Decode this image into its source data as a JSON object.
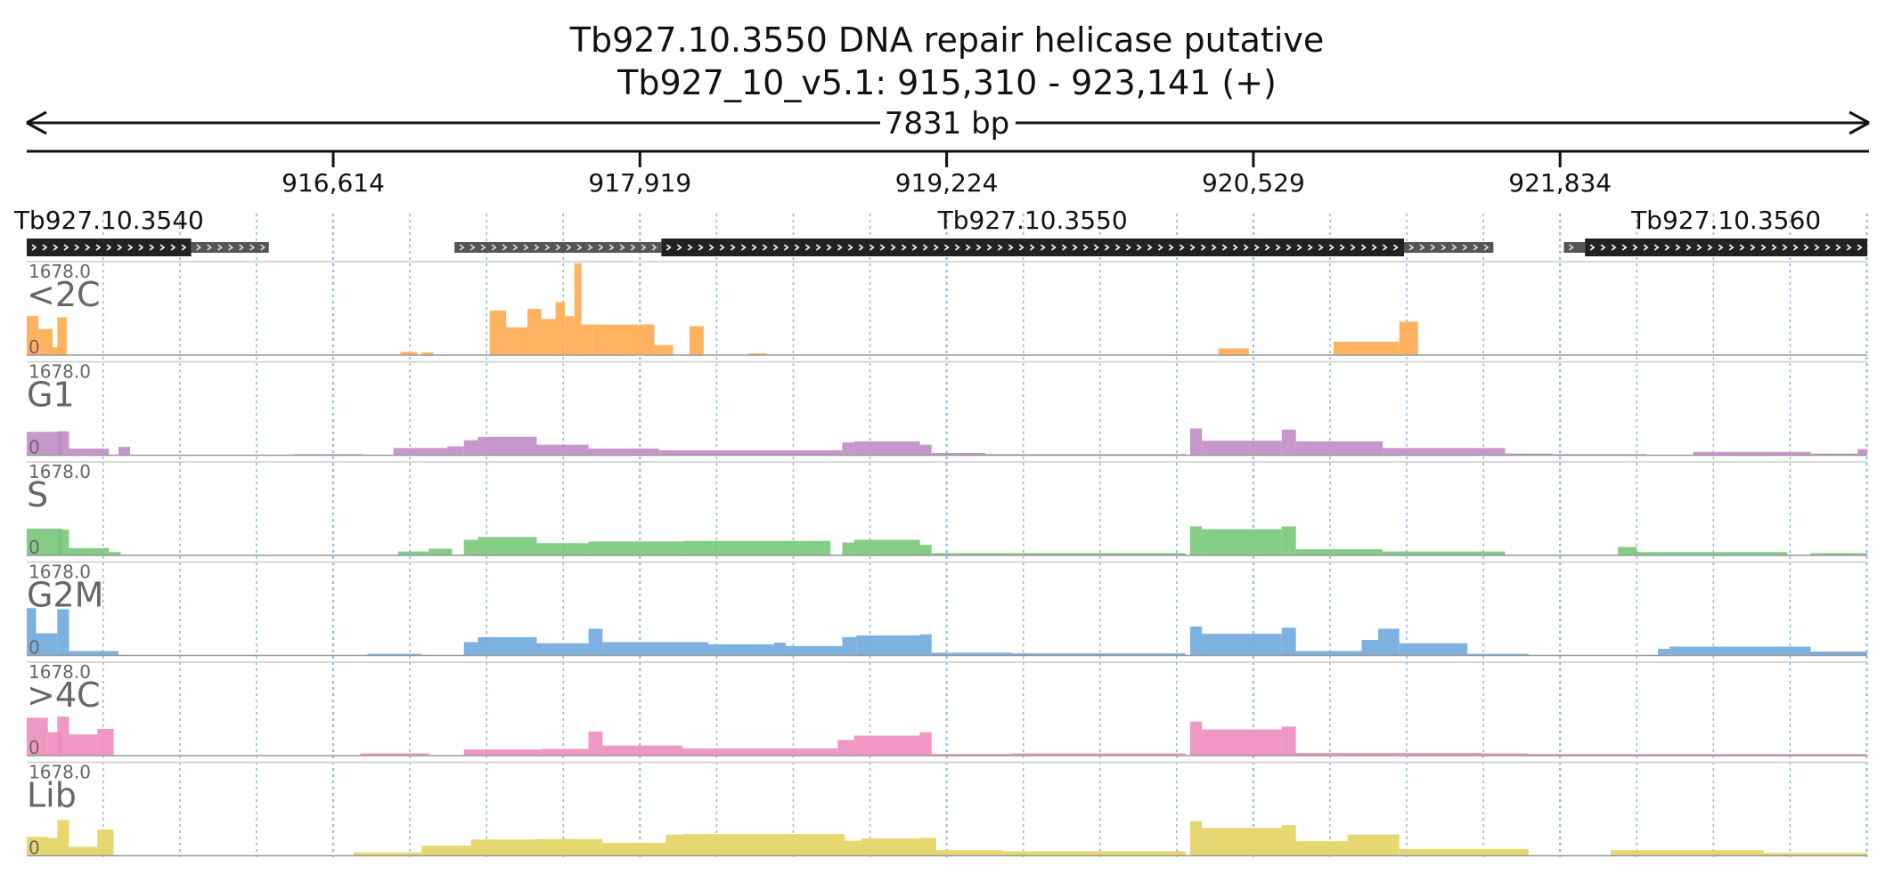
{
  "title": {
    "line1": "Tb927.10.3550  DNA repair helicase  putative",
    "line2": "Tb927_10_v5.1: 915,310 - 923,141 (+)"
  },
  "span_label": "7831 bp",
  "colors": {
    "text": "#000000",
    "track_label": "#666666",
    "grid": "#8fbde3",
    "gene_box": "#222222",
    "utr_box": "#555555"
  },
  "chart_data": {
    "type": "area",
    "title": "Tb927.10.3550  DNA repair helicase  putative",
    "region": {
      "chrom": "Tb927_10_v5.1",
      "start": 915310,
      "end": 923141,
      "strand": "+"
    },
    "xlim": [
      915310,
      923141
    ],
    "grid": true,
    "ticks": [
      {
        "pos": 916614,
        "label": "916,614"
      },
      {
        "pos": 917919,
        "label": "917,919"
      },
      {
        "pos": 919224,
        "label": "919,224"
      },
      {
        "pos": 920529,
        "label": "920,529"
      },
      {
        "pos": 921834,
        "label": "921,834"
      }
    ],
    "genes": [
      {
        "name": "Tb927.10.3540",
        "cds": [
          915310,
          916010
        ],
        "utr": [
          916010,
          916340
        ]
      },
      {
        "name": "Tb927.10.3550",
        "utr5": [
          917130,
          918010
        ],
        "cds": [
          918010,
          921170
        ],
        "utr3": [
          921170,
          921550
        ]
      },
      {
        "name": "Tb927.10.3560",
        "utr5": [
          921850,
          921940
        ],
        "cds": [
          921940,
          923141
        ]
      }
    ],
    "series": [
      {
        "name": "<2C",
        "max_label": "1678.0",
        "min_label": "0",
        "color": "#ffab4f",
        "ylim": [
          0,
          1678
        ],
        "peaks": [
          [
            915310,
            915360,
            700
          ],
          [
            915360,
            915420,
            470
          ],
          [
            915420,
            915460,
            140
          ],
          [
            915460,
            915530,
            0
          ],
          [
            915420,
            915440,
            0
          ],
          [
            915430,
            915470,
            0
          ],
          [
            915415,
            915420,
            0
          ],
          [
            915330,
            915350,
            0
          ],
          [
            915425,
            915435,
            0
          ],
          [
            915430,
            915430,
            0
          ],
          [
            915430,
            915440,
            0
          ],
          [
            915440,
            915500,
            0
          ],
          [
            915440,
            915480,
            680
          ],
          [
            915480,
            915500,
            0
          ],
          [
            916900,
            916970,
            60
          ],
          [
            916990,
            917040,
            50
          ],
          [
            917280,
            917350,
            800
          ],
          [
            917350,
            917440,
            500
          ],
          [
            917440,
            917500,
            830
          ],
          [
            917500,
            917560,
            650
          ],
          [
            917560,
            917600,
            950
          ],
          [
            917600,
            917640,
            700
          ],
          [
            917640,
            917670,
            1650
          ],
          [
            917670,
            917720,
            550
          ],
          [
            917720,
            917980,
            550
          ],
          [
            917980,
            918060,
            180
          ],
          [
            918130,
            918190,
            520
          ],
          [
            918380,
            918460,
            30
          ],
          [
            920380,
            920510,
            120
          ],
          [
            920870,
            921150,
            240
          ],
          [
            921150,
            921230,
            600
          ]
        ]
      },
      {
        "name": "G1",
        "max_label": "1678.0",
        "min_label": "0",
        "color": "#c08cc5",
        "ylim": [
          0,
          1678
        ],
        "peaks": [
          [
            915310,
            915460,
            420
          ],
          [
            915440,
            915490,
            430
          ],
          [
            915490,
            915660,
            120
          ],
          [
            915700,
            915750,
            150
          ],
          [
            916450,
            916740,
            20
          ],
          [
            916870,
            917100,
            130
          ],
          [
            917100,
            917170,
            160
          ],
          [
            917170,
            917230,
            270
          ],
          [
            917230,
            917480,
            330
          ],
          [
            917480,
            917700,
            190
          ],
          [
            917700,
            918000,
            120
          ],
          [
            918000,
            918780,
            90
          ],
          [
            918780,
            918830,
            230
          ],
          [
            918830,
            919110,
            250
          ],
          [
            919110,
            919160,
            190
          ],
          [
            919160,
            919390,
            40
          ],
          [
            919390,
            920240,
            20
          ],
          [
            920260,
            920310,
            480
          ],
          [
            920310,
            920650,
            260
          ],
          [
            920650,
            920710,
            460
          ],
          [
            920710,
            921080,
            250
          ],
          [
            921080,
            921600,
            130
          ],
          [
            921600,
            921800,
            30
          ],
          [
            921800,
            922200,
            20
          ],
          [
            922400,
            922900,
            60
          ],
          [
            922900,
            923100,
            30
          ],
          [
            923100,
            923141,
            110
          ]
        ]
      },
      {
        "name": "S",
        "max_label": "1678.0",
        "min_label": "0",
        "color": "#78c77a",
        "ylim": [
          0,
          1678
        ],
        "peaks": [
          [
            915310,
            915460,
            480
          ],
          [
            915440,
            915490,
            460
          ],
          [
            915490,
            915660,
            130
          ],
          [
            915660,
            915710,
            60
          ],
          [
            916890,
            917020,
            70
          ],
          [
            917020,
            917120,
            120
          ],
          [
            917170,
            917230,
            280
          ],
          [
            917230,
            917480,
            330
          ],
          [
            917480,
            917700,
            220
          ],
          [
            917700,
            918100,
            250
          ],
          [
            918100,
            918730,
            260
          ],
          [
            918780,
            918830,
            230
          ],
          [
            918830,
            919110,
            280
          ],
          [
            919110,
            919160,
            190
          ],
          [
            919160,
            919460,
            40
          ],
          [
            919460,
            920240,
            40
          ],
          [
            920260,
            920310,
            520
          ],
          [
            920310,
            920650,
            470
          ],
          [
            920650,
            920710,
            520
          ],
          [
            920710,
            921080,
            110
          ],
          [
            921080,
            921600,
            70
          ],
          [
            922080,
            922160,
            150
          ],
          [
            922160,
            922800,
            60
          ],
          [
            922900,
            923141,
            40
          ]
        ]
      },
      {
        "name": "G2M",
        "max_label": "1678.0",
        "min_label": "0",
        "color": "#6fa8dc",
        "ylim": [
          0,
          1678
        ],
        "peaks": [
          [
            915310,
            915350,
            850
          ],
          [
            915350,
            915440,
            400
          ],
          [
            915440,
            915490,
            830
          ],
          [
            915490,
            915700,
            80
          ],
          [
            916760,
            916990,
            30
          ],
          [
            917170,
            917230,
            240
          ],
          [
            917230,
            917480,
            330
          ],
          [
            917480,
            917700,
            220
          ],
          [
            917700,
            917760,
            480
          ],
          [
            917760,
            918210,
            240
          ],
          [
            918210,
            918490,
            200
          ],
          [
            918490,
            918540,
            230
          ],
          [
            918540,
            918780,
            170
          ],
          [
            918780,
            918840,
            330
          ],
          [
            918840,
            919110,
            360
          ],
          [
            919110,
            919160,
            380
          ],
          [
            919160,
            919500,
            50
          ],
          [
            919500,
            920240,
            40
          ],
          [
            920260,
            920310,
            520
          ],
          [
            920310,
            920650,
            390
          ],
          [
            920650,
            920710,
            500
          ],
          [
            920710,
            920990,
            80
          ],
          [
            920990,
            921060,
            280
          ],
          [
            921060,
            921150,
            480
          ],
          [
            921150,
            921440,
            220
          ],
          [
            921440,
            921700,
            30
          ],
          [
            922250,
            922300,
            120
          ],
          [
            922300,
            922900,
            160
          ],
          [
            922900,
            923141,
            70
          ]
        ]
      },
      {
        "name": ">4C",
        "max_label": "1678.0",
        "min_label": "0",
        "color": "#f08cbc",
        "ylim": [
          0,
          1678
        ],
        "peaks": [
          [
            915310,
            915400,
            680
          ],
          [
            915400,
            915460,
            420
          ],
          [
            915440,
            915490,
            700
          ],
          [
            915490,
            915610,
            380
          ],
          [
            915610,
            915680,
            480
          ],
          [
            916730,
            917020,
            40
          ],
          [
            917170,
            917500,
            110
          ],
          [
            917500,
            917700,
            120
          ],
          [
            917700,
            917760,
            430
          ],
          [
            917760,
            918100,
            180
          ],
          [
            918100,
            918760,
            130
          ],
          [
            918760,
            918830,
            280
          ],
          [
            918830,
            919110,
            360
          ],
          [
            919110,
            919160,
            420
          ],
          [
            919160,
            919500,
            30
          ],
          [
            919500,
            920240,
            40
          ],
          [
            920260,
            920310,
            610
          ],
          [
            920310,
            920650,
            470
          ],
          [
            920650,
            920710,
            520
          ],
          [
            920710,
            921100,
            50
          ],
          [
            921100,
            921500,
            50
          ],
          [
            921500,
            921700,
            40
          ],
          [
            921700,
            923141,
            30
          ]
        ]
      },
      {
        "name": "Lib",
        "max_label": "1678.0",
        "min_label": "0",
        "color": "#e3d361",
        "ylim": [
          0,
          1678
        ],
        "peaks": [
          [
            915310,
            915400,
            340
          ],
          [
            915400,
            915440,
            320
          ],
          [
            915440,
            915490,
            640
          ],
          [
            915490,
            915610,
            160
          ],
          [
            915610,
            915680,
            470
          ],
          [
            916700,
            916990,
            60
          ],
          [
            916990,
            917200,
            180
          ],
          [
            917200,
            917480,
            290
          ],
          [
            917480,
            917760,
            300
          ],
          [
            917760,
            918030,
            230
          ],
          [
            918030,
            918100,
            380
          ],
          [
            918100,
            918790,
            390
          ],
          [
            918790,
            918860,
            270
          ],
          [
            918860,
            919110,
            310
          ],
          [
            919110,
            919180,
            320
          ],
          [
            919180,
            919460,
            100
          ],
          [
            919460,
            920240,
            80
          ],
          [
            920260,
            920310,
            620
          ],
          [
            920310,
            920650,
            500
          ],
          [
            920650,
            920710,
            550
          ],
          [
            920710,
            920930,
            260
          ],
          [
            920930,
            921150,
            380
          ],
          [
            921150,
            921700,
            120
          ],
          [
            922050,
            922700,
            100
          ],
          [
            922700,
            923141,
            50
          ]
        ]
      }
    ]
  }
}
